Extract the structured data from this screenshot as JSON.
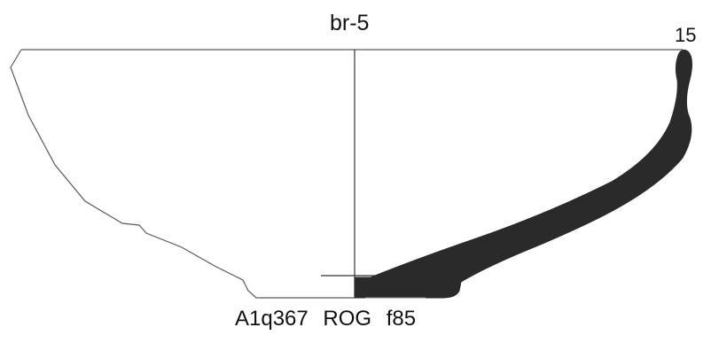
{
  "drawing": {
    "type_label": "br-5",
    "diameter_label": "15",
    "catalog_label": "A1q367  ROG  f85",
    "colors": {
      "profile_fill": "#2a2a2a",
      "outline": "#5a5a5a",
      "text": "#111111",
      "background": "#ffffff"
    }
  }
}
